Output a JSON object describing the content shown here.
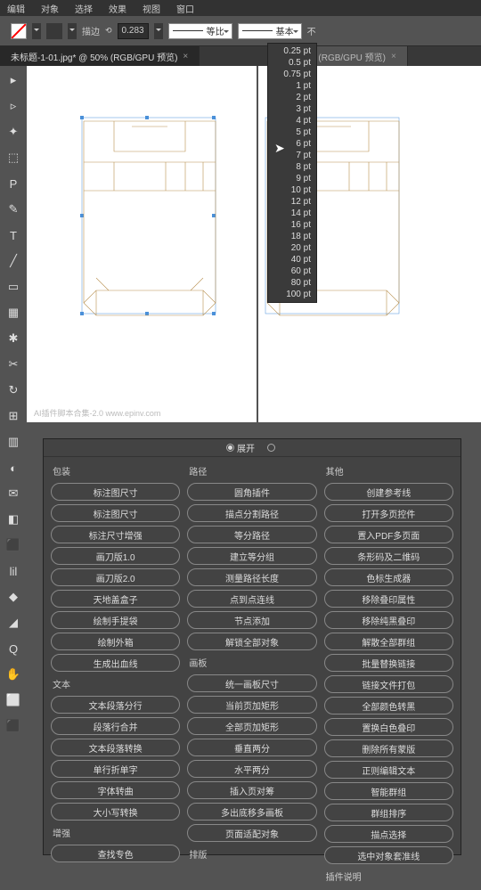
{
  "menubar": [
    "编辑",
    "对象",
    "选择",
    "效果",
    "视图",
    "窗口"
  ],
  "toolbar": {
    "stroke_label": "描边",
    "stroke_value": "0.283",
    "opt1": "等比",
    "opt2": "基本",
    "suffix": "不"
  },
  "tabs": {
    "t1": {
      "label": "未标题-1-01.jpg* @ 50% (RGB/GPU 预览)"
    },
    "t2": {
      "label": "12.5% (RGB/GPU 预览)"
    }
  },
  "tools": [
    "▸",
    "▹",
    "✦",
    "⬚",
    "P",
    "✎",
    "T",
    "╱",
    "▭",
    "▦",
    "✱",
    "✂",
    "↻",
    "⊞",
    "▥",
    "◐",
    "✉",
    "◧",
    "⬛",
    "lil",
    "◆",
    "◢",
    "Q",
    "✋",
    "⬜",
    "⬛"
  ],
  "dieline": {
    "watermark": "AI插件脚本合集-2.0 www.epinv.com",
    "color": "#b89050",
    "sel_color": "#4a90d9"
  },
  "stroke_options": [
    "0.25 pt",
    "0.5 pt",
    "0.75 pt",
    "1 pt",
    "2 pt",
    "3 pt",
    "4 pt",
    "5 pt",
    "6 pt",
    "7 pt",
    "8 pt",
    "9 pt",
    "10 pt",
    "12 pt",
    "14 pt",
    "16 pt",
    "18 pt",
    "20 pt",
    "40 pt",
    "60 pt",
    "80 pt",
    "100 pt"
  ],
  "panel": {
    "header": {
      "r1": "展开",
      "r2": ""
    },
    "col1": {
      "s1": "包装",
      "b1": [
        "标注图尺寸",
        "标注图尺寸",
        "标注尺寸增强",
        "画刀版1.0",
        "画刀版2.0",
        "天地盖盒子",
        "绘制手提袋",
        "绘制外箱",
        "生成出血线"
      ],
      "s2": "文本",
      "b2": [
        "文本段落分行",
        "段落行合并",
        "文本段落转换",
        "单行折单字",
        "字体转曲",
        "大小写转换"
      ],
      "s3": "增强",
      "b3": [
        "查找专色"
      ]
    },
    "col2": {
      "s1": "路径",
      "b1": [
        "圆角插件",
        "描点分割路径",
        "等分路径",
        "建立等分组",
        "测量路径长度",
        "点到点连线",
        "节点添加",
        "解锁全部对象"
      ],
      "s2": "画板",
      "b2": [
        "统一画板尺寸",
        "当前页加矩形",
        "全部页加矩形",
        "垂直两分",
        "水平两分",
        "插入页对筹",
        "多出底移多画板",
        "页面适配对象"
      ],
      "s3": "排版"
    },
    "col3": {
      "s1": "其他",
      "b1": [
        "创建参考线",
        "打开多页控件",
        "置入PDF多页面",
        "条形码及二维码",
        "色标生成器",
        "移除叠印属性",
        "移除纯黑叠印",
        "解散全部群组",
        "批量替换链接",
        "链接文件打包",
        "全部颜色转黑",
        "置换白色叠印",
        "删除所有蒙版",
        "正则编辑文本",
        "智能群组",
        "群组排序",
        "描点选择",
        "选中对象套准线"
      ],
      "s2": "插件说明"
    }
  }
}
